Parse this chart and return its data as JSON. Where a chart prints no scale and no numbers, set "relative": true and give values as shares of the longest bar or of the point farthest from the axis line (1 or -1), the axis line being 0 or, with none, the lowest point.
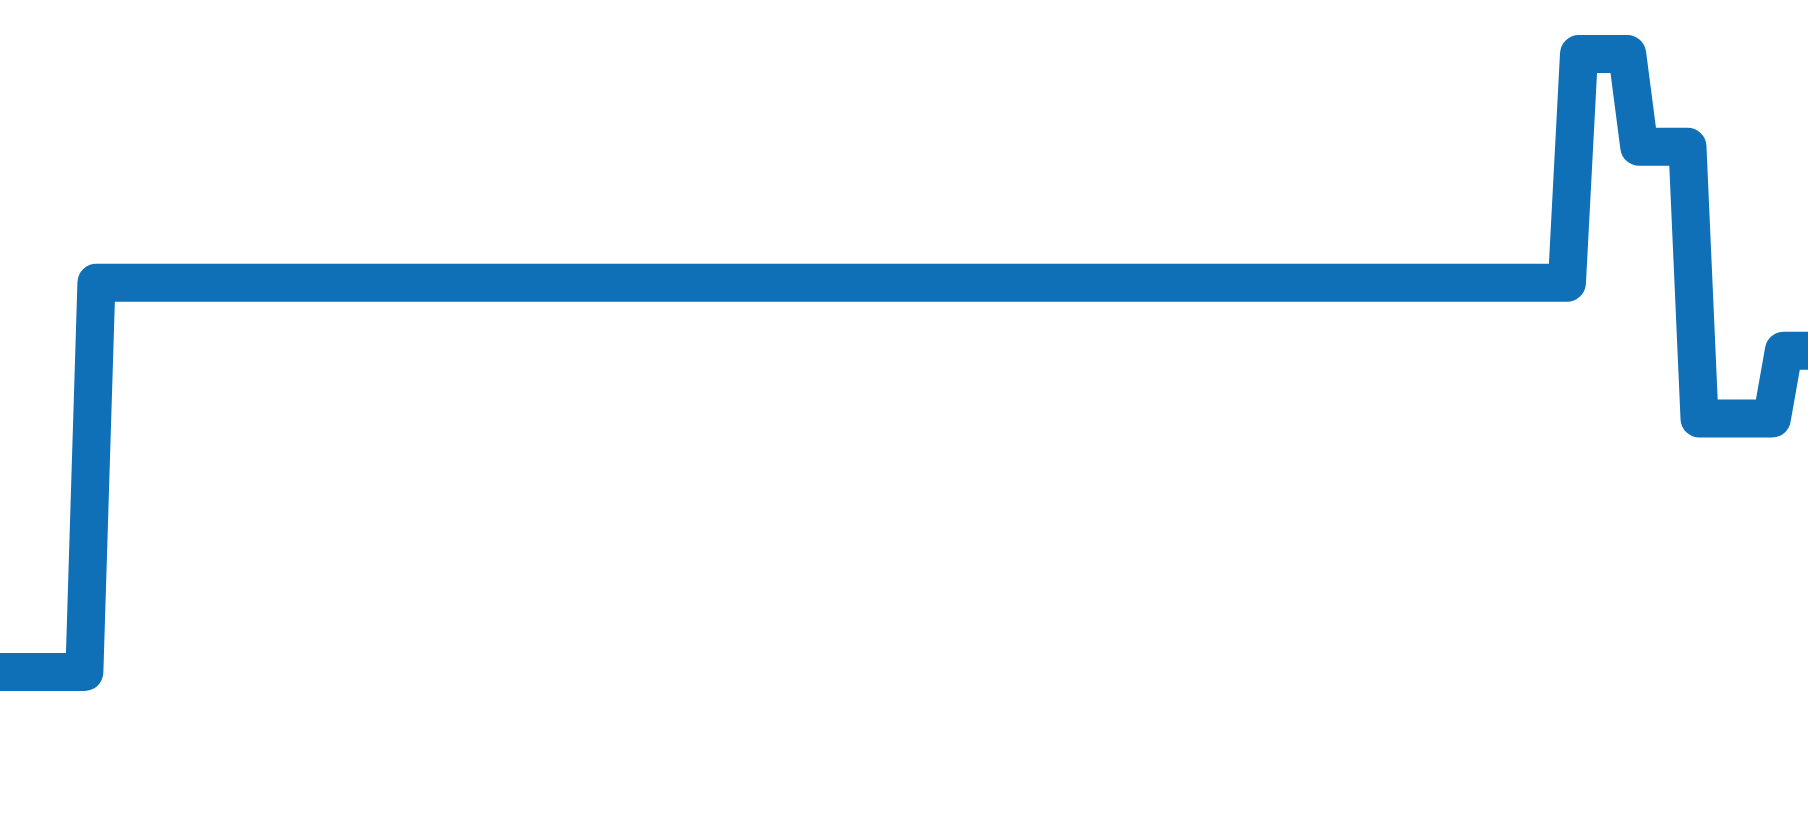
{
  "chart_data": {
    "type": "line",
    "relative": true,
    "color": "#0f70b8",
    "categories": [
      null,
      null,
      null,
      null,
      null,
      null,
      null,
      null,
      null,
      null,
      null,
      null,
      null,
      null,
      null,
      null,
      null,
      null,
      null,
      null,
      null,
      null,
      null,
      null,
      null,
      null,
      null,
      null,
      null,
      null,
      null,
      null,
      null,
      null,
      null,
      null,
      null,
      null,
      null,
      null,
      null,
      null,
      null,
      null,
      null,
      null,
      null,
      null,
      null,
      null,
      null,
      null,
      null,
      null,
      null,
      null,
      null,
      null,
      null,
      null,
      null,
      null,
      null,
      null,
      null,
      null,
      null,
      null,
      null,
      null,
      null,
      null,
      null,
      null,
      null,
      null,
      null,
      null,
      null,
      null,
      null,
      null,
      null,
      null,
      null,
      null,
      null,
      null,
      null,
      null,
      null,
      null,
      null,
      null,
      null,
      null,
      null,
      null,
      null,
      null,
      null,
      null,
      null,
      null,
      null,
      null,
      null,
      null,
      null,
      null,
      null,
      null,
      null,
      null,
      null,
      null,
      null,
      null,
      null,
      null,
      null,
      null,
      null,
      null,
      null,
      null,
      null,
      null,
      null,
      null,
      null,
      null,
      null,
      null,
      null,
      null,
      null,
      null,
      null,
      null,
      null,
      null,
      null,
      null,
      null,
      null,
      null,
      null,
      null,
      null,
      null
    ],
    "values": [
      0,
      0,
      0,
      0,
      0,
      0,
      0,
      0,
      0.63,
      0.63,
      0.63,
      0.63,
      0.63,
      0.63,
      0.63,
      0.63,
      0.63,
      0.63,
      0.63,
      0.63,
      0.63,
      0.63,
      0.63,
      0.63,
      0.63,
      0.63,
      0.63,
      0.63,
      0.63,
      0.63,
      0.63,
      0.63,
      0.63,
      0.63,
      0.63,
      0.63,
      0.63,
      0.63,
      0.63,
      0.63,
      0.63,
      0.63,
      0.63,
      0.63,
      0.63,
      0.63,
      0.63,
      0.63,
      0.63,
      0.63,
      0.63,
      0.63,
      0.63,
      0.63,
      0.63,
      0.63,
      0.63,
      0.63,
      0.63,
      0.63,
      0.63,
      0.63,
      0.63,
      0.63,
      0.63,
      0.63,
      0.63,
      0.63,
      0.63,
      0.63,
      0.63,
      0.63,
      0.63,
      0.63,
      0.63,
      0.63,
      0.63,
      0.63,
      0.63,
      0.63,
      0.63,
      0.63,
      0.63,
      0.63,
      0.63,
      0.63,
      0.63,
      0.63,
      0.63,
      0.63,
      0.63,
      0.63,
      0.63,
      0.63,
      0.63,
      0.63,
      0.63,
      0.63,
      0.63,
      0.63,
      0.63,
      0.63,
      0.63,
      0.63,
      0.63,
      0.63,
      0.63,
      0.63,
      0.63,
      0.63,
      0.63,
      0.63,
      0.63,
      0.63,
      0.63,
      0.63,
      0.63,
      0.63,
      0.63,
      0.63,
      0.63,
      0.63,
      0.63,
      0.63,
      0.63,
      0.63,
      0.63,
      0.63,
      0.63,
      0.63,
      0.63,
      1,
      1,
      1,
      1,
      1,
      0.85,
      0.85,
      0.85,
      0.85,
      0.85,
      0.41,
      0.41,
      0.41,
      0.41,
      0.41,
      0.41,
      0.41,
      0.52,
      0.52,
      0.52
    ]
  }
}
